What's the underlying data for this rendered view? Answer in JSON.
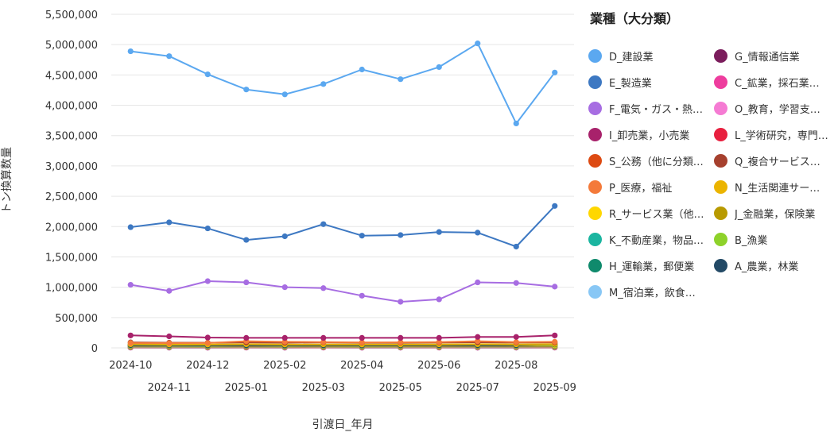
{
  "chart_data": {
    "type": "line",
    "xlabel": "引渡日_年月",
    "ylabel": "トン換算数量",
    "ylim": [
      0,
      5500000
    ],
    "yticks": [
      "0",
      "500,000",
      "1,000,000",
      "1,500,000",
      "2,000,000",
      "2,500,000",
      "3,000,000",
      "3,500,000",
      "4,000,000",
      "4,500,000",
      "5,000,000",
      "5,500,000"
    ],
    "x": [
      "2024-10",
      "2024-11",
      "2024-12",
      "2025-01",
      "2025-02",
      "2025-03",
      "2025-04",
      "2025-05",
      "2025-06",
      "2025-07",
      "2025-08",
      "2025-09"
    ],
    "legend_title": "業種（大分類）",
    "legend_position": "right",
    "grid": true,
    "series": [
      {
        "name": "D_建設業",
        "color": "#5ba8f0",
        "values": [
          4890000,
          4810000,
          4510000,
          4260000,
          4180000,
          4350000,
          4590000,
          4430000,
          4630000,
          5020000,
          3700000,
          4540000
        ]
      },
      {
        "name": "G_情報通信業",
        "color": "#7b1d5c",
        "values": [
          6000,
          5000,
          5000,
          6000,
          5000,
          6000,
          5000,
          5000,
          6000,
          5000,
          5000,
          6000
        ]
      },
      {
        "name": "E_製造業",
        "color": "#3d78c2",
        "values": [
          1990000,
          2070000,
          1970000,
          1780000,
          1840000,
          2040000,
          1850000,
          1860000,
          1910000,
          1900000,
          1670000,
          2340000
        ]
      },
      {
        "name": "C_鉱業，採石業…",
        "color": "#ee3d9e",
        "values": [
          15000,
          14000,
          13000,
          14000,
          13000,
          14000,
          13000,
          14000,
          14000,
          15000,
          14000,
          15000
        ]
      },
      {
        "name": "F_電気・ガス・熱…",
        "color": "#a76de2",
        "values": [
          1040000,
          940000,
          1100000,
          1080000,
          1000000,
          985000,
          860000,
          760000,
          800000,
          1080000,
          1070000,
          1010000
        ]
      },
      {
        "name": "O_教育，学習支…",
        "color": "#f57bd3",
        "values": [
          4000,
          4000,
          3000,
          4000,
          3000,
          4000,
          3000,
          4000,
          4000,
          3000,
          4000,
          4000
        ]
      },
      {
        "name": "I_卸売業，小売業",
        "color": "#a8226b",
        "values": [
          205000,
          190000,
          170000,
          165000,
          165000,
          165000,
          165000,
          165000,
          165000,
          180000,
          180000,
          205000
        ]
      },
      {
        "name": "L_学術研究，専門…",
        "color": "#e8203f",
        "values": [
          9000,
          8000,
          8000,
          9000,
          8000,
          9000,
          8000,
          8000,
          9000,
          8000,
          8000,
          9000
        ]
      },
      {
        "name": "S_公務（他に分類…",
        "color": "#dd4a12",
        "values": [
          30000,
          28000,
          27000,
          28000,
          27000,
          28000,
          27000,
          28000,
          28000,
          29000,
          28000,
          30000
        ]
      },
      {
        "name": "Q_複合サービス…",
        "color": "#a6402e",
        "values": [
          90000,
          85000,
          85000,
          90000,
          85000,
          90000,
          85000,
          85000,
          88000,
          92000,
          88000,
          90000
        ]
      },
      {
        "name": "P_医療，福祉",
        "color": "#f47a3a",
        "values": [
          80000,
          78000,
          80000,
          110000,
          100000,
          95000,
          90000,
          92000,
          95000,
          110000,
          95000,
          100000
        ]
      },
      {
        "name": "N_生活関連サー…",
        "color": "#ebb400",
        "values": [
          60000,
          55000,
          55000,
          60000,
          55000,
          58000,
          55000,
          56000,
          58000,
          60000,
          58000,
          62000
        ]
      },
      {
        "name": "R_サービス業（他…",
        "color": "#ffd700",
        "values": [
          40000,
          38000,
          37000,
          40000,
          37000,
          38000,
          36000,
          37000,
          38000,
          40000,
          38000,
          42000
        ]
      },
      {
        "name": "J_金融業，保険業",
        "color": "#b89a00",
        "values": [
          10000,
          9000,
          9000,
          10000,
          9000,
          10000,
          9000,
          9000,
          10000,
          9000,
          9000,
          10000
        ]
      },
      {
        "name": "K_不動産業，物品…",
        "color": "#1bb5a0",
        "values": [
          35000,
          33000,
          32000,
          35000,
          32000,
          34000,
          32000,
          33000,
          34000,
          35000,
          34000,
          36000
        ]
      },
      {
        "name": "B_漁業",
        "color": "#8ed22a",
        "values": [
          20000,
          19000,
          18000,
          20000,
          18000,
          19000,
          18000,
          19000,
          19000,
          20000,
          19000,
          21000
        ]
      },
      {
        "name": "H_運輸業，郵便業",
        "color": "#0f8a6c",
        "values": [
          50000,
          48000,
          46000,
          50000,
          46000,
          50000,
          47000,
          48000,
          49000,
          50000,
          49000,
          55000
        ]
      },
      {
        "name": "A_農業，林業",
        "color": "#234a66",
        "values": [
          45000,
          42000,
          40000,
          42000,
          40000,
          42000,
          40000,
          41000,
          42000,
          43000,
          42000,
          60000
        ]
      },
      {
        "name": "M_宿泊業，飲食…",
        "color": "#88c7f5",
        "values": [
          12000,
          11000,
          11000,
          12000,
          11000,
          12000,
          11000,
          11000,
          12000,
          11000,
          11000,
          12000
        ]
      }
    ]
  }
}
